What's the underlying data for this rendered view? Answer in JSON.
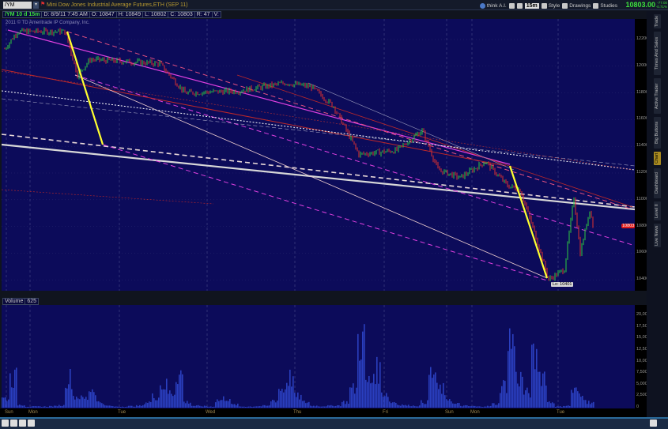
{
  "header": {
    "symbol": "/YM",
    "title": "Mini Dow Jones Industrial Average Futures,ETH (SEP 11)",
    "think": "think A.I.",
    "timeframe": "15m",
    "style": "Style",
    "drawings": "Drawings",
    "studies": "Studies",
    "last": "10803.00",
    "change": "-77.00",
    "change_pct": "-0.71%"
  },
  "infobar": {
    "symbol": "/YM 10 d 15m",
    "date": "D: 8/9/11 7:45 AM",
    "open": "O: 10847",
    "high": "H: 10849",
    "low": "L: 10802",
    "close": "C: 10803",
    "range": "R: 47",
    "vol": "V:"
  },
  "copyright": "2011 © TD Ameritrade IP Company, Inc.",
  "right_tabs": [
    "Trade",
    "Times And Sales",
    "Active Trader",
    "Big Buttons",
    "Chart",
    "Dashboard",
    "Level II",
    "Live News"
  ],
  "active_tab": "Chart",
  "volume_header": {
    "label": "Volume",
    "value": "625"
  },
  "low_label": "Lo: 10401",
  "last_price_label": "10803",
  "colors": {
    "background": "#0c0b5a",
    "up": "#2ecc40",
    "down": "#e03030",
    "volume": "#2a3fbf",
    "last_price": "#e01818",
    "trendline_yellow": "#ffff30",
    "trendline_magenta": "#e040e0"
  },
  "chart_data": [
    {
      "type": "candlestick",
      "ylim": [
        10300,
        12300
      ],
      "price_ticks": [
        "12200",
        "12000",
        "11800",
        "11600",
        "11400",
        "11200",
        "11000",
        "10800",
        "10600",
        "10400"
      ],
      "x_labels": [
        "Sun",
        "Mon",
        "Tue",
        "Wed",
        "Thu",
        "Fri",
        "Sun",
        "Mon",
        "Tue"
      ],
      "approx_close_path": [
        [
          1,
          12130
        ],
        [
          5,
          12260
        ],
        [
          20,
          12260
        ],
        [
          24,
          11935
        ],
        [
          28,
          12050
        ],
        [
          50,
          12020
        ],
        [
          58,
          11800
        ],
        [
          75,
          11815
        ],
        [
          90,
          11875
        ],
        [
          98,
          11845
        ],
        [
          105,
          11700
        ],
        [
          113,
          11340
        ],
        [
          125,
          11370
        ],
        [
          133,
          11520
        ],
        [
          138,
          11225
        ],
        [
          145,
          11165
        ],
        [
          153,
          11285
        ],
        [
          160,
          11105
        ],
        [
          164,
          11075
        ],
        [
          169,
          10720
        ],
        [
          173,
          10401
        ],
        [
          178,
          10480
        ],
        [
          181,
          11020
        ],
        [
          183,
          10600
        ],
        [
          186,
          10930
        ],
        [
          187,
          10803
        ]
      ],
      "low": 10401,
      "last": 10803
    },
    {
      "type": "bar",
      "title": "Volume",
      "ylim": [
        0,
        22500
      ],
      "ticks": [
        "20,000",
        "17,500",
        "15,000",
        "12,500",
        "10,000",
        "7,500",
        "5,000",
        "2,500",
        "0"
      ],
      "values": [
        2500,
        8000,
        800,
        300,
        300,
        300,
        400,
        600,
        8000,
        3000,
        2500,
        5000,
        1500,
        500,
        300,
        300,
        400,
        500,
        1500,
        3000,
        6000,
        4000,
        9000,
        1500,
        500,
        400,
        300,
        2000,
        2500,
        800,
        300,
        300,
        400,
        500,
        2000,
        5000,
        8000,
        3000,
        1500,
        500,
        400,
        500,
        600,
        1500,
        5000,
        18000,
        7000,
        10000,
        4000,
        1500,
        800,
        600,
        500,
        1500,
        9000,
        5000,
        2500,
        1000,
        500,
        400,
        300,
        400,
        1000,
        6000,
        18000,
        8000,
        4000,
        13000,
        9000,
        1500,
        300,
        500,
        4500,
        3000,
        1500,
        0,
        0,
        0,
        0,
        0
      ]
    }
  ]
}
